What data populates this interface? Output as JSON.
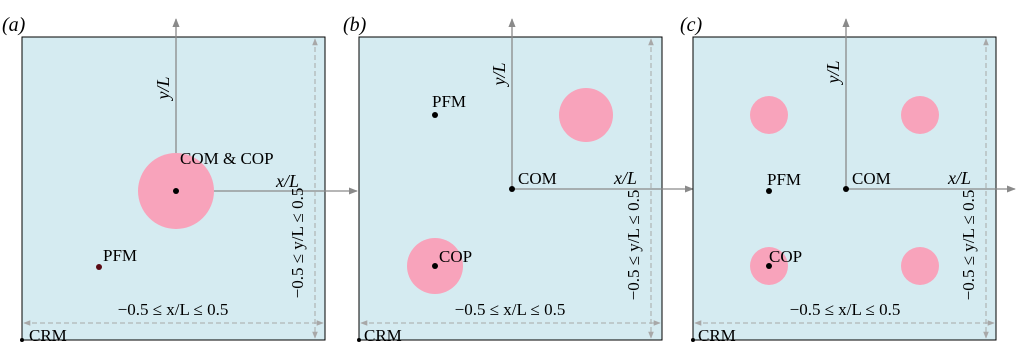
{
  "colors": {
    "panel_fill": "#d5ebf1",
    "circle_fill": "#f8a3bb",
    "axis": "#8a8a8a",
    "dim": "#a8a8a8",
    "frame": "#000000",
    "dot": "#000000",
    "pfm_dot_a": "#5a0a14"
  },
  "panels": [
    {
      "label": "(a)",
      "y_axis_label": "y/L",
      "x_axis_label": "x/L",
      "x_range_label": "−0.5 ≤ x/L ≤ 0.5",
      "y_range_label": "−0.5 ≤ y/L ≤ 0.5",
      "corner_label": "CRM",
      "point_labels": {
        "com": "COM & COP",
        "pfm": "PFM"
      }
    },
    {
      "label": "(b)",
      "y_axis_label": "y/L",
      "x_axis_label": "x/L",
      "x_range_label": "−0.5 ≤ x/L ≤ 0.5",
      "y_range_label": "−0.5 ≤ y/L ≤ 0.5",
      "corner_label": "CRM",
      "point_labels": {
        "pfm": "PFM",
        "com": "COM",
        "cop": "COP"
      }
    },
    {
      "label": "(c)",
      "y_axis_label": "y/L",
      "x_axis_label": "x/L",
      "x_range_label": "−0.5 ≤ x/L ≤ 0.5",
      "y_range_label": "−0.5 ≤ y/L ≤ 0.5",
      "corner_label": "CRM",
      "point_labels": {
        "pfm": "PFM",
        "com": "COM",
        "cop": "COP"
      }
    }
  ]
}
